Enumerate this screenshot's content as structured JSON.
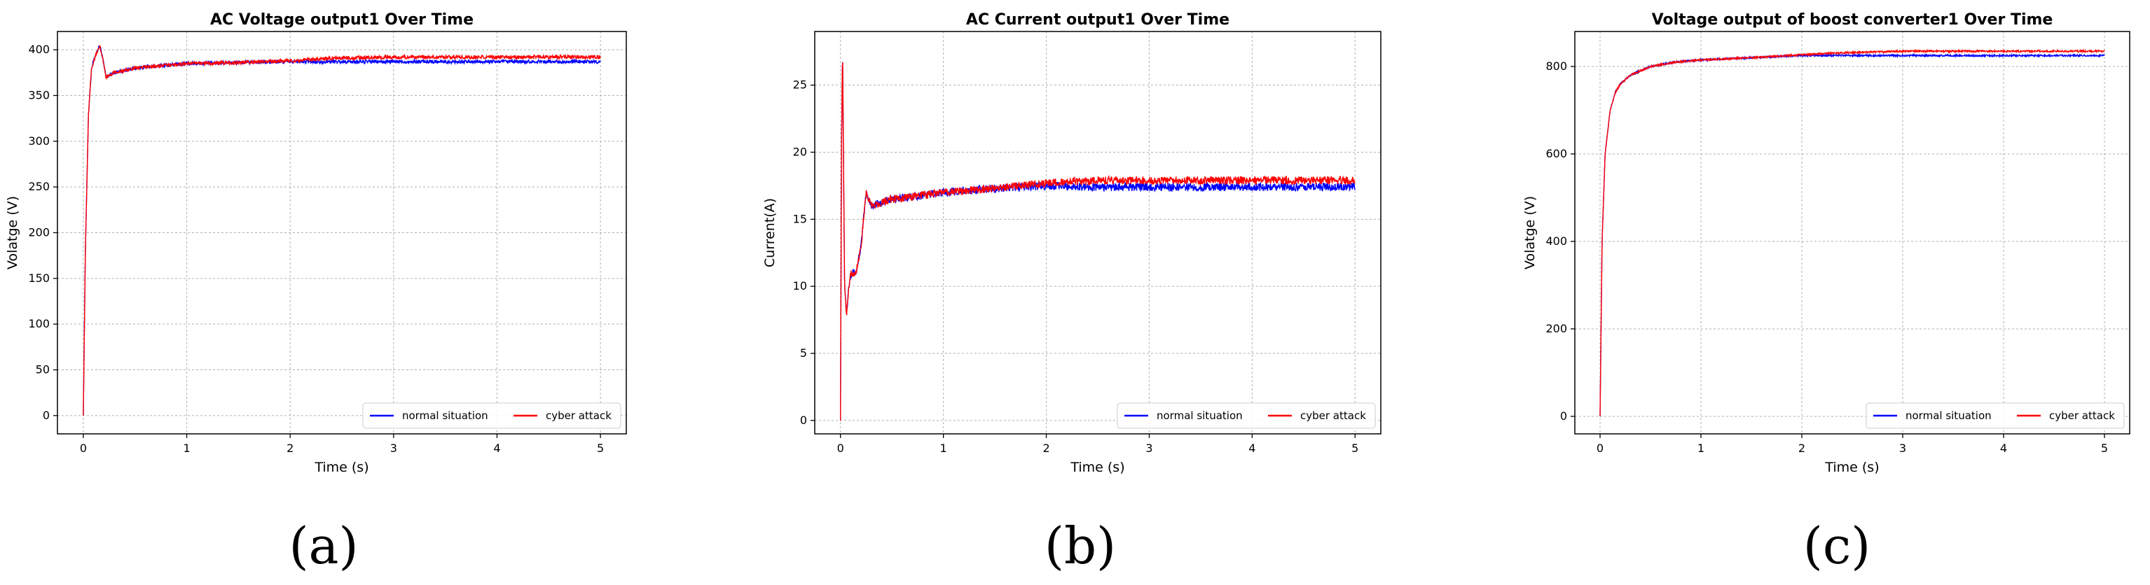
{
  "chart_data": [
    {
      "type": "line",
      "caption": "(a)",
      "title": "AC Voltage output1  Over Time",
      "xlabel": "Time (s)",
      "ylabel": "Volatge (V)",
      "xlim": [
        -0.25,
        5.25
      ],
      "ylim": [
        -20,
        420
      ],
      "xticks": [
        0,
        1,
        2,
        3,
        4,
        5
      ],
      "yticks": [
        0,
        50,
        100,
        150,
        200,
        250,
        300,
        350,
        400
      ],
      "grid": true,
      "legend": "bottom-right",
      "series": [
        {
          "name": "normal situation",
          "color": "#0000ff",
          "x": [
            0,
            0.02,
            0.05,
            0.08,
            0.12,
            0.16,
            0.18,
            0.22,
            0.3,
            0.5,
            0.8,
            1.0,
            1.5,
            2.0,
            2.5,
            3.0,
            3.5,
            4.0,
            4.5,
            5.0
          ],
          "y": [
            0,
            180,
            330,
            380,
            395,
            405,
            395,
            370,
            375,
            380,
            383,
            385,
            386,
            387,
            387,
            387,
            387,
            387,
            387,
            387
          ],
          "noise": 2
        },
        {
          "name": "cyber attack",
          "color": "#ff0000",
          "x": [
            0,
            0.02,
            0.05,
            0.08,
            0.12,
            0.16,
            0.18,
            0.22,
            0.3,
            0.5,
            0.8,
            1.0,
            1.5,
            2.0,
            2.5,
            3.0,
            3.5,
            4.0,
            4.5,
            5.0
          ],
          "y": [
            0,
            180,
            330,
            380,
            395,
            405,
            395,
            370,
            375,
            380,
            383,
            385,
            386,
            388,
            391,
            392,
            392,
            392,
            392,
            392
          ],
          "noise": 2
        }
      ]
    },
    {
      "type": "line",
      "caption": "(b)",
      "title": "AC Current output1 Over Time",
      "xlabel": "Time (s)",
      "ylabel": "Current(A)",
      "xlim": [
        -0.25,
        5.25
      ],
      "ylim": [
        -1,
        29
      ],
      "xticks": [
        0,
        1,
        2,
        3,
        4,
        5
      ],
      "yticks": [
        0,
        5,
        10,
        15,
        20,
        25
      ],
      "grid": true,
      "legend": "bottom-right",
      "series": [
        {
          "name": "normal situation",
          "color": "#0000ff",
          "x": [
            0,
            0.01,
            0.02,
            0.04,
            0.06,
            0.08,
            0.1,
            0.15,
            0.2,
            0.25,
            0.3,
            0.5,
            1.0,
            1.5,
            2.0,
            2.5,
            3.0,
            3.5,
            4.0,
            4.5,
            5.0
          ],
          "y": [
            0,
            20,
            28,
            10,
            8,
            10,
            11,
            11,
            13,
            17,
            16,
            16.5,
            17,
            17.3,
            17.5,
            17.4,
            17.4,
            17.4,
            17.4,
            17.4,
            17.4
          ],
          "noise": 0.3
        },
        {
          "name": "cyber attack",
          "color": "#ff0000",
          "x": [
            0,
            0.01,
            0.02,
            0.04,
            0.06,
            0.08,
            0.1,
            0.15,
            0.2,
            0.25,
            0.3,
            0.5,
            1.0,
            1.5,
            2.0,
            2.5,
            3.0,
            3.5,
            4.0,
            4.5,
            5.0
          ],
          "y": [
            0,
            20,
            28,
            10,
            8,
            10,
            11,
            11,
            13,
            17,
            16,
            16.5,
            17,
            17.3,
            17.7,
            17.9,
            17.9,
            17.9,
            17.9,
            17.9,
            17.9
          ],
          "noise": 0.3
        }
      ]
    },
    {
      "type": "line",
      "caption": "(c)",
      "title": "Voltage output of boost converter1 Over Time",
      "xlabel": "Time (s)",
      "ylabel": "Volatge (V)",
      "xlim": [
        -0.25,
        5.25
      ],
      "ylim": [
        -40,
        880
      ],
      "xticks": [
        0,
        1,
        2,
        3,
        4,
        5
      ],
      "yticks": [
        0,
        200,
        400,
        600,
        800
      ],
      "grid": true,
      "legend": "bottom-right",
      "series": [
        {
          "name": "normal situation",
          "color": "#0000ff",
          "x": [
            0,
            0.02,
            0.05,
            0.1,
            0.15,
            0.2,
            0.3,
            0.5,
            0.75,
            1.0,
            1.5,
            2.0,
            2.5,
            3.0,
            3.5,
            4.0,
            4.5,
            5.0
          ],
          "y": [
            0,
            400,
            600,
            700,
            740,
            760,
            780,
            800,
            810,
            815,
            820,
            825,
            825,
            825,
            825,
            825,
            825,
            825
          ],
          "noise": 2
        },
        {
          "name": "cyber attack",
          "color": "#ff0000",
          "x": [
            0,
            0.02,
            0.05,
            0.1,
            0.15,
            0.2,
            0.3,
            0.5,
            0.75,
            1.0,
            1.5,
            2.0,
            2.5,
            3.0,
            3.5,
            4.0,
            4.5,
            5.0
          ],
          "y": [
            0,
            400,
            600,
            700,
            740,
            760,
            780,
            800,
            810,
            815,
            820,
            827,
            832,
            835,
            835,
            835,
            835,
            835
          ],
          "noise": 2
        }
      ]
    }
  ]
}
